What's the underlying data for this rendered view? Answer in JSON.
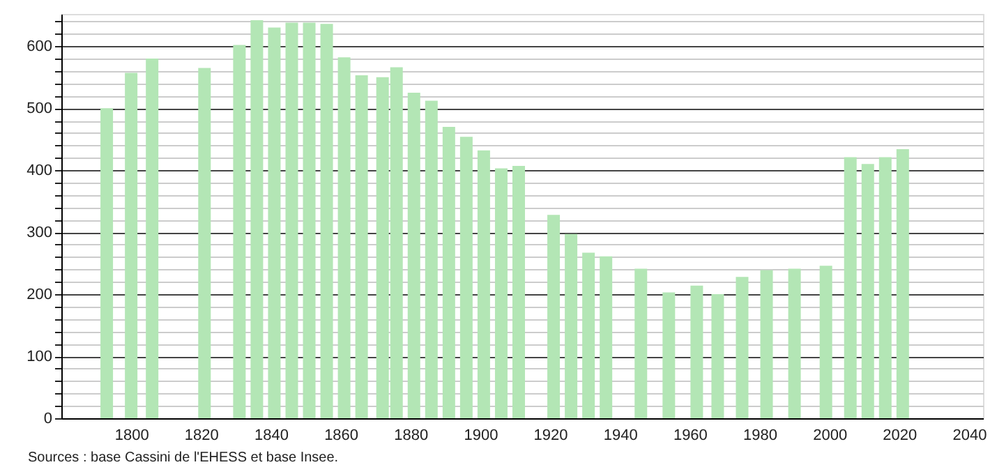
{
  "chart_data": {
    "type": "bar",
    "x": [
      1793,
      1800,
      1806,
      1821,
      1831,
      1836,
      1841,
      1846,
      1851,
      1856,
      1861,
      1866,
      1872,
      1876,
      1881,
      1886,
      1891,
      1896,
      1901,
      1906,
      1911,
      1921,
      1926,
      1931,
      1936,
      1946,
      1954,
      1962,
      1968,
      1975,
      1982,
      1990,
      1999,
      2006,
      2011,
      2016,
      2021
    ],
    "values": [
      500,
      557,
      580,
      565,
      602,
      642,
      630,
      638,
      638,
      636,
      582,
      553,
      550,
      566,
      525,
      512,
      470,
      454,
      432,
      403,
      407,
      328,
      297,
      267,
      261,
      241,
      203,
      214,
      200,
      228,
      239,
      241,
      246,
      421,
      410,
      421,
      434
    ],
    "color": "#b3e6b5",
    "xlim": [
      1780,
      2044
    ],
    "xticks": [
      1800,
      1820,
      1840,
      1860,
      1880,
      1900,
      1920,
      1940,
      1960,
      1980,
      2000,
      2020,
      2040
    ],
    "ylim": [
      0,
      652
    ],
    "yticks": [
      0,
      {
        "value": 20,
        "label": null
      },
      {
        "value": 40,
        "label": null
      },
      {
        "value": 60,
        "label": null
      },
      {
        "value": 80,
        "label": null
      },
      100,
      {
        "value": 120,
        "label": null
      },
      {
        "value": 140,
        "label": null
      },
      {
        "value": 160,
        "label": null
      },
      {
        "value": 180,
        "label": null
      },
      200,
      {
        "value": 220,
        "label": null
      },
      {
        "value": 240,
        "label": null
      },
      {
        "value": 260,
        "label": null
      },
      {
        "value": 280,
        "label": null
      },
      300,
      {
        "value": 320,
        "label": null
      },
      {
        "value": 340,
        "label": null
      },
      {
        "value": 360,
        "label": null
      },
      {
        "value": 380,
        "label": null
      },
      400,
      {
        "value": 420,
        "label": null
      },
      {
        "value": 440,
        "label": null
      },
      {
        "value": 460,
        "label": null
      },
      {
        "value": 480,
        "label": null
      },
      500,
      {
        "value": 520,
        "label": null
      },
      {
        "value": 540,
        "label": null
      },
      {
        "value": 560,
        "label": null
      },
      {
        "value": 580,
        "label": null
      },
      600,
      {
        "value": 620,
        "label": null
      },
      {
        "value": 640,
        "label": null
      }
    ],
    "grid": "y",
    "annotations": [
      "Sources : base Cassini de l'EHESS et base Insee."
    ]
  }
}
